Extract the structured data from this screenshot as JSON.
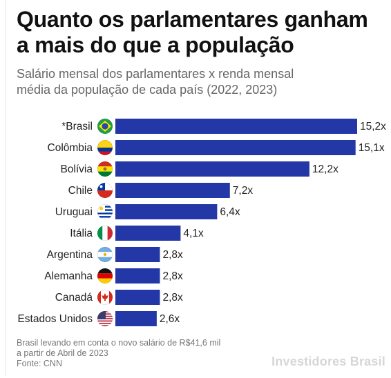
{
  "title_line1": "Quanto os parlamentares ganham",
  "title_line2": "a mais do que a população",
  "subtitle_line1": "Salário mensal dos parlamentares x renda mensal",
  "subtitle_line2": "média da população de cada país (2022, 2023)",
  "footnote_line1": "Brasil levando em conta o novo salário de R$41,6 mil",
  "footnote_line2": "a partir de Abril de 2023",
  "source": "Fonte: CNN",
  "brand": "Investidores Brasil",
  "colors": {
    "bar": "#2437a6",
    "text": "#222222"
  },
  "chart_data": {
    "type": "bar",
    "orientation": "horizontal",
    "categories": [
      "*Brasil",
      "Colômbia",
      "Bolívia",
      "Chile",
      "Uruguai",
      "Itália",
      "Argentina",
      "Alemanha",
      "Canadá",
      "Estados Unidos"
    ],
    "values": [
      15.2,
      15.1,
      12.2,
      7.2,
      6.4,
      4.1,
      2.8,
      2.8,
      2.8,
      2.6
    ],
    "value_labels": [
      "15,2x",
      "15,1x",
      "12,2x",
      "7,2x",
      "6,4x",
      "4,1x",
      "2,8x",
      "2,8x",
      "2,8x",
      "2,6x"
    ],
    "flags": [
      "brazil-flag-icon",
      "colombia-flag-icon",
      "bolivia-flag-icon",
      "chile-flag-icon",
      "uruguay-flag-icon",
      "italy-flag-icon",
      "argentina-flag-icon",
      "germany-flag-icon",
      "canada-flag-icon",
      "usa-flag-icon"
    ],
    "xlim": [
      0,
      15.2
    ],
    "grid": false
  }
}
